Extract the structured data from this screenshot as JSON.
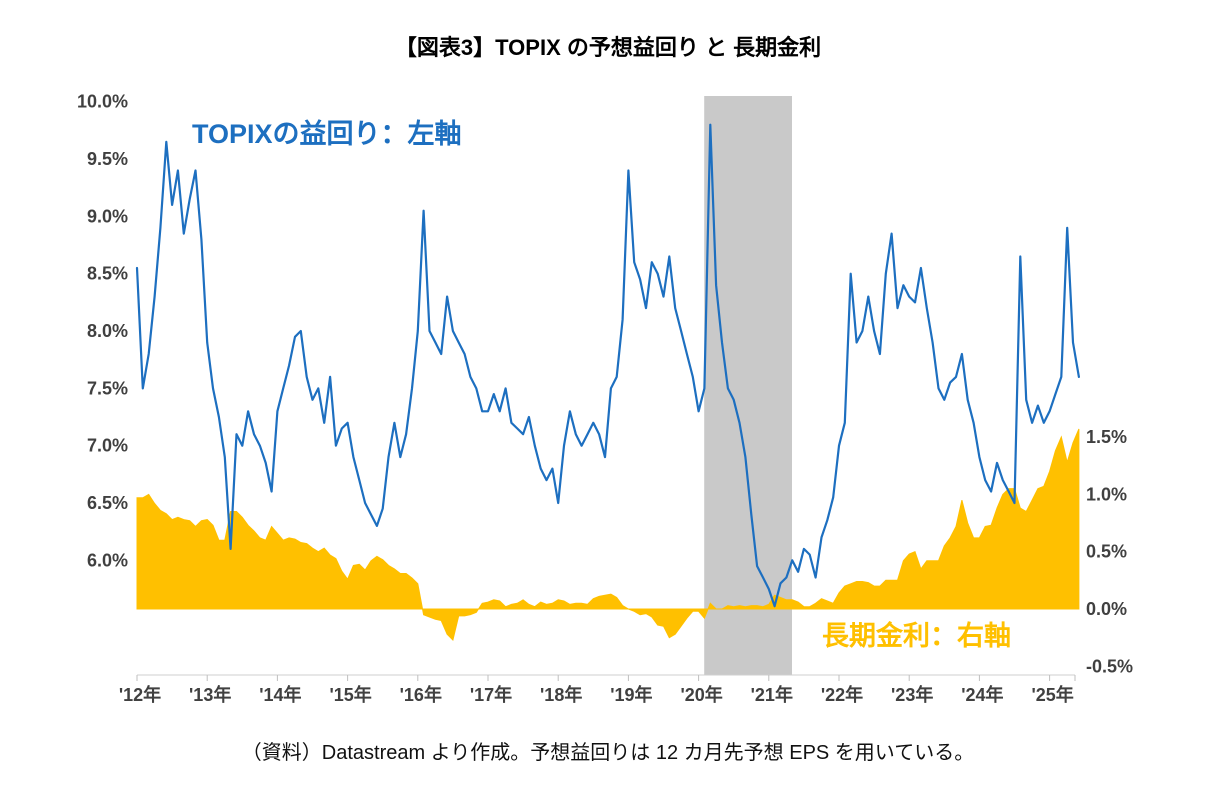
{
  "title": "【図表3】TOPIX の予想益回り と 長期金利",
  "caption": "（資料）Datastream より作成。予想益回りは 12 カ月先予想 EPS を用いている。",
  "colors": {
    "topix_line": "#1d6fc0",
    "rate_area": "#ffc000",
    "shaded_band": "#c9c9c9",
    "axis_text": "#404040",
    "axis_line": "#cfcfcf"
  },
  "chart_data": {
    "type": "line",
    "title": "【図表3】TOPIX の予想益回り と 長期金利",
    "x_unit": "year",
    "start": "2012-01",
    "end": "2025-06",
    "interval": "monthly",
    "grid": false,
    "legend_position": "in-plot text labels",
    "shaded_region": {
      "from": 2020.08,
      "to": 2021.33,
      "color": "#c9c9c9"
    },
    "left_axis": {
      "unit": "%",
      "min": 5.0,
      "max": 10.05,
      "ticks": [
        {
          "label": "10.0%",
          "value": 10.0
        },
        {
          "label": "9.5%",
          "value": 9.5
        },
        {
          "label": "9.0%",
          "value": 9.0
        },
        {
          "label": "8.5%",
          "value": 8.5
        },
        {
          "label": "8.0%",
          "value": 8.0
        },
        {
          "label": "7.5%",
          "value": 7.5
        },
        {
          "label": "7.0%",
          "value": 7.0
        },
        {
          "label": "6.5%",
          "value": 6.5
        },
        {
          "label": "6.0%",
          "value": 6.0
        }
      ]
    },
    "right_axis": {
      "unit": "%",
      "min": -0.5,
      "max": 1.5,
      "area_baseline": 0.0,
      "ticks": [
        {
          "label": "1.5%",
          "value": 1.5
        },
        {
          "label": "1.0%",
          "value": 1.0
        },
        {
          "label": "0.5%",
          "value": 0.5
        },
        {
          "label": "0.0%",
          "value": 0.0
        },
        {
          "label": "-0.5%",
          "value": -0.5
        }
      ]
    },
    "x_axis": {
      "ticks": [
        {
          "label": "'12年",
          "year": 2012
        },
        {
          "label": "'13年",
          "year": 2013
        },
        {
          "label": "'14年",
          "year": 2014
        },
        {
          "label": "'15年",
          "year": 2015
        },
        {
          "label": "'16年",
          "year": 2016
        },
        {
          "label": "'17年",
          "year": 2017
        },
        {
          "label": "'18年",
          "year": 2018
        },
        {
          "label": "'19年",
          "year": 2019
        },
        {
          "label": "'20年",
          "year": 2020
        },
        {
          "label": "'21年",
          "year": 2021
        },
        {
          "label": "'22年",
          "year": 2022
        },
        {
          "label": "'23年",
          "year": 2023
        },
        {
          "label": "'24年",
          "year": 2024
        },
        {
          "label": "'25年",
          "year": 2025
        }
      ]
    },
    "series": [
      {
        "name": "TOPIXの益回り：左軸",
        "axis": "left",
        "style": "line",
        "color": "#1d6fc0",
        "values": [
          8.55,
          7.5,
          7.8,
          8.3,
          8.9,
          9.65,
          9.1,
          9.4,
          8.85,
          9.15,
          9.4,
          8.8,
          7.9,
          7.5,
          7.25,
          6.9,
          6.1,
          7.1,
          7.0,
          7.3,
          7.1,
          7.0,
          6.85,
          6.6,
          7.3,
          7.5,
          7.7,
          7.95,
          8.0,
          7.6,
          7.4,
          7.5,
          7.2,
          7.6,
          7.0,
          7.15,
          7.2,
          6.9,
          6.7,
          6.5,
          6.4,
          6.3,
          6.45,
          6.9,
          7.2,
          6.9,
          7.1,
          7.5,
          8.0,
          9.05,
          8.0,
          7.9,
          7.8,
          8.3,
          8.0,
          7.9,
          7.8,
          7.6,
          7.5,
          7.3,
          7.3,
          7.45,
          7.3,
          7.5,
          7.2,
          7.15,
          7.1,
          7.25,
          7.0,
          6.8,
          6.7,
          6.8,
          6.5,
          7.0,
          7.3,
          7.1,
          7.0,
          7.1,
          7.2,
          7.1,
          6.9,
          7.5,
          7.6,
          8.1,
          9.4,
          8.6,
          8.45,
          8.2,
          8.6,
          8.5,
          8.3,
          8.65,
          8.2,
          8.0,
          7.8,
          7.6,
          7.3,
          7.5,
          9.8,
          8.4,
          7.9,
          7.5,
          7.4,
          7.2,
          6.9,
          6.4,
          5.95,
          5.85,
          5.75,
          5.6,
          5.8,
          5.85,
          6.0,
          5.9,
          6.1,
          6.05,
          5.85,
          6.2,
          6.35,
          6.55,
          7.0,
          7.2,
          8.5,
          7.9,
          8.0,
          8.3,
          8.0,
          7.8,
          8.5,
          8.85,
          8.2,
          8.4,
          8.3,
          8.25,
          8.55,
          8.2,
          7.9,
          7.5,
          7.4,
          7.55,
          7.6,
          7.8,
          7.4,
          7.2,
          6.9,
          6.7,
          6.6,
          6.85,
          6.7,
          6.6,
          6.5,
          8.65,
          7.4,
          7.2,
          7.35,
          7.2,
          7.3,
          7.45,
          7.6,
          8.9,
          7.9,
          7.6
        ]
      },
      {
        "name": "長期金利：右軸",
        "axis": "right",
        "style": "area",
        "color": "#ffc000",
        "values": [
          0.97,
          0.97,
          1.0,
          0.92,
          0.86,
          0.83,
          0.78,
          0.8,
          0.78,
          0.77,
          0.72,
          0.77,
          0.78,
          0.73,
          0.6,
          0.6,
          0.85,
          0.85,
          0.8,
          0.73,
          0.68,
          0.62,
          0.6,
          0.72,
          0.66,
          0.6,
          0.62,
          0.61,
          0.58,
          0.57,
          0.53,
          0.5,
          0.53,
          0.47,
          0.44,
          0.33,
          0.26,
          0.38,
          0.39,
          0.34,
          0.42,
          0.46,
          0.43,
          0.38,
          0.35,
          0.31,
          0.31,
          0.27,
          0.22,
          -0.05,
          -0.07,
          -0.09,
          -0.1,
          -0.22,
          -0.27,
          -0.06,
          -0.06,
          -0.05,
          -0.03,
          0.05,
          0.06,
          0.08,
          0.07,
          0.02,
          0.04,
          0.05,
          0.08,
          0.04,
          0.02,
          0.06,
          0.04,
          0.05,
          0.08,
          0.07,
          0.04,
          0.05,
          0.05,
          0.04,
          0.09,
          0.11,
          0.12,
          0.13,
          0.1,
          0.03,
          0.0,
          -0.02,
          -0.05,
          -0.04,
          -0.07,
          -0.14,
          -0.15,
          -0.25,
          -0.22,
          -0.15,
          -0.08,
          -0.02,
          -0.02,
          -0.08,
          0.05,
          0.0,
          0.0,
          0.03,
          0.02,
          0.03,
          0.02,
          0.03,
          0.03,
          0.02,
          0.04,
          0.12,
          0.1,
          0.08,
          0.08,
          0.06,
          0.02,
          0.02,
          0.05,
          0.09,
          0.07,
          0.05,
          0.14,
          0.2,
          0.22,
          0.24,
          0.24,
          0.23,
          0.2,
          0.2,
          0.25,
          0.25,
          0.25,
          0.42,
          0.48,
          0.5,
          0.35,
          0.42,
          0.42,
          0.42,
          0.55,
          0.62,
          0.72,
          0.95,
          0.75,
          0.62,
          0.62,
          0.72,
          0.73,
          0.88,
          1.0,
          1.05,
          1.05,
          0.88,
          0.85,
          0.95,
          1.05,
          1.07,
          1.2,
          1.38,
          1.5,
          1.28,
          1.45,
          1.57
        ]
      }
    ]
  }
}
